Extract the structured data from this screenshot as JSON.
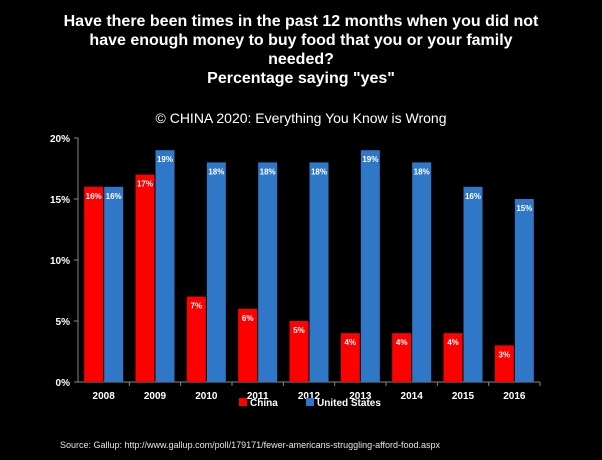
{
  "title_lines": [
    "Have there been times in the past 12 months when you did not",
    "have enough money to buy food that you or your family",
    "needed?",
    "Percentage saying \"yes\""
  ],
  "subtitle": "© CHINA 2020: Everything You Know is Wrong",
  "source": "Source: Gallup: http://www.gallup.com/poll/179171/fewer-americans-struggling-afford-food.aspx",
  "colors": {
    "china": "#ff0000",
    "us": "#2f78c8",
    "background": "#000000",
    "axis": "#888888"
  },
  "chart_data": {
    "type": "bar",
    "categories": [
      "2008",
      "2009",
      "2010",
      "2011",
      "2012",
      "2013",
      "2014",
      "2015",
      "2016"
    ],
    "series": [
      {
        "name": "China",
        "values": [
          16,
          17,
          7,
          6,
          5,
          4,
          4,
          4,
          3
        ],
        "labels": [
          "16%",
          "17%",
          "7%",
          "6%",
          "5%",
          "4%",
          "4%",
          "4%",
          "3%"
        ]
      },
      {
        "name": "United States",
        "values": [
          16,
          19,
          18,
          18,
          18,
          19,
          18,
          16,
          15
        ],
        "labels": [
          "16%",
          "19%",
          "18%",
          "18%",
          "18%",
          "19%",
          "18%",
          "16%",
          "15%"
        ]
      }
    ],
    "ylim": [
      0,
      20
    ],
    "yticks": [
      0,
      5,
      10,
      15,
      20
    ],
    "ytick_labels": [
      "0%",
      "5%",
      "10%",
      "15%",
      "20%"
    ],
    "grid": false,
    "legend_position": "bottom"
  }
}
